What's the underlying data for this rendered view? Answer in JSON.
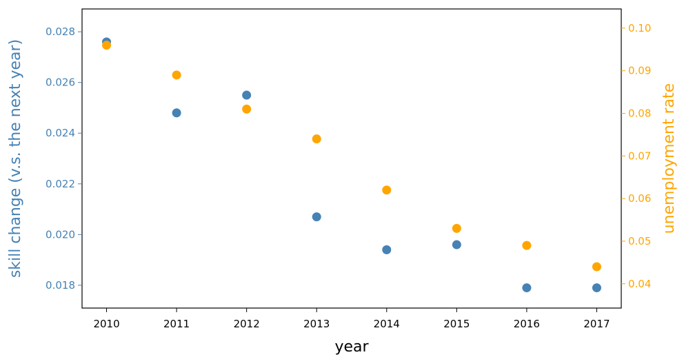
{
  "chart_data": {
    "type": "scatter",
    "xlabel": "year",
    "ylabel_left": "skill change (v.s. the next year)",
    "ylabel_right": "unemployment rate",
    "x": [
      2010,
      2011,
      2012,
      2013,
      2014,
      2015,
      2016,
      2017
    ],
    "xlim": [
      2009.65,
      2017.35
    ],
    "ylim_left": [
      0.0171,
      0.0289
    ],
    "ylim_right": [
      0.0343,
      0.1045
    ],
    "left_ticks": [
      "0.018",
      "0.020",
      "0.022",
      "0.024",
      "0.026",
      "0.028"
    ],
    "right_ticks": [
      "0.04",
      "0.05",
      "0.06",
      "0.07",
      "0.08",
      "0.09",
      "0.10"
    ],
    "x_ticks": [
      "2010",
      "2011",
      "2012",
      "2013",
      "2014",
      "2015",
      "2016",
      "2017"
    ],
    "grid": false,
    "series": [
      {
        "axis": "left",
        "color": "#4682B4",
        "values": [
          0.0276,
          0.0248,
          0.0255,
          0.0207,
          0.0194,
          0.0196,
          0.0179,
          0.0179
        ]
      },
      {
        "axis": "right",
        "color": "#FFA500",
        "values": [
          0.096,
          0.089,
          0.081,
          0.074,
          0.062,
          0.053,
          0.049,
          0.044
        ]
      }
    ]
  }
}
